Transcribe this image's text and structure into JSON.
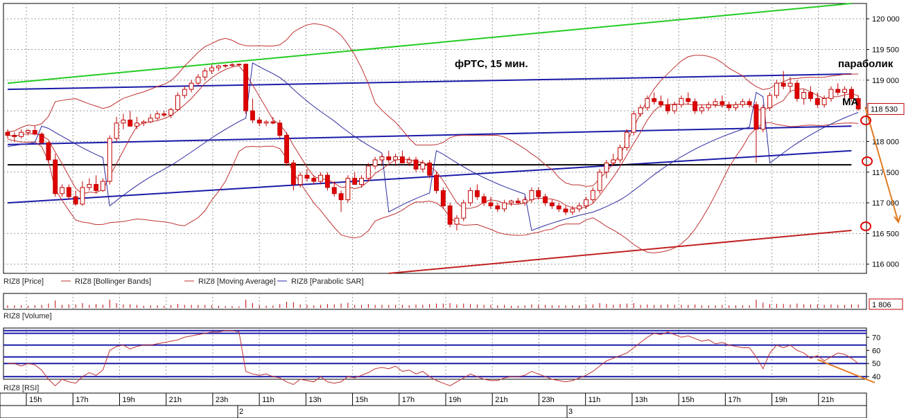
{
  "chart_data": {
    "type": "candlestick",
    "title": "фРТС, 15 мин.",
    "annotations": {
      "parabolic": "параболик",
      "ma": "МА"
    },
    "price_panel": {
      "ylim": [
        115850,
        120250
      ],
      "y_ticks": [
        "120 000",
        "119 500",
        "119 000",
        "118 500",
        "118 000",
        "117 500",
        "117 000",
        "116 500",
        "116 000"
      ],
      "y_tick_values": [
        120000,
        119500,
        119000,
        118500,
        118000,
        117500,
        117000,
        116500,
        116000
      ],
      "last_price": "118 530",
      "last_price_value": 118530,
      "legend": [
        "RIZ8 [Price]",
        "RIZ8 [Bollinger Bands]",
        "RIZ8 [Moving Average]",
        "RIZ8 [Parabolic SAR]"
      ],
      "candles": [
        [
          118150,
          118200,
          118050,
          118100
        ],
        [
          118100,
          118150,
          118000,
          118080
        ],
        [
          118080,
          118200,
          118050,
          118150
        ],
        [
          118150,
          118200,
          118100,
          118180
        ],
        [
          118180,
          118250,
          118100,
          118120
        ],
        [
          118120,
          118150,
          117950,
          117980
        ],
        [
          117980,
          118000,
          117650,
          117700
        ],
        [
          117700,
          117800,
          117100,
          117150
        ],
        [
          117150,
          117300,
          117100,
          117250
        ],
        [
          117250,
          117300,
          117050,
          117100
        ],
        [
          117100,
          117200,
          116950,
          116980
        ],
        [
          116980,
          117350,
          116950,
          117250
        ],
        [
          117250,
          117400,
          117200,
          117300
        ],
        [
          117300,
          117450,
          117150,
          117200
        ],
        [
          117200,
          117400,
          117180,
          117350
        ],
        [
          117350,
          118100,
          117300,
          118050
        ],
        [
          118050,
          118400,
          118000,
          118300
        ],
        [
          118300,
          118450,
          118200,
          118350
        ],
        [
          118350,
          118500,
          118250,
          118250
        ],
        [
          118250,
          118400,
          118200,
          118300
        ],
        [
          118300,
          118350,
          118250,
          118320
        ],
        [
          118320,
          118450,
          118300,
          118380
        ],
        [
          118380,
          118500,
          118350,
          118450
        ],
        [
          118450,
          118500,
          118400,
          118430
        ],
        [
          118430,
          118550,
          118380,
          118520
        ],
        [
          118520,
          118800,
          118500,
          118750
        ],
        [
          118750,
          118900,
          118700,
          118850
        ],
        [
          118850,
          119000,
          118800,
          118950
        ],
        [
          118950,
          119100,
          118900,
          119050
        ],
        [
          119050,
          119200,
          119000,
          119150
        ],
        [
          119150,
          119250,
          119100,
          119200
        ],
        [
          119200,
          119250,
          119150,
          119230
        ],
        [
          119230,
          119260,
          119200,
          119240
        ],
        [
          119240,
          119280,
          119220,
          119250
        ],
        [
          119250,
          119270,
          119230,
          119260
        ],
        [
          119260,
          119270,
          118450,
          118500
        ],
        [
          118500,
          118700,
          118300,
          118350
        ],
        [
          118350,
          118400,
          118250,
          118300
        ],
        [
          118300,
          118350,
          118250,
          118320
        ],
        [
          118320,
          118400,
          118280,
          118300
        ],
        [
          118300,
          118350,
          118050,
          118100
        ],
        [
          118100,
          118150,
          117600,
          117650
        ],
        [
          117650,
          117700,
          117200,
          117300
        ],
        [
          117300,
          117500,
          117250,
          117450
        ],
        [
          117450,
          117550,
          117350,
          117400
        ],
        [
          117400,
          117450,
          117300,
          117350
        ],
        [
          117350,
          117500,
          117300,
          117450
        ],
        [
          117450,
          117500,
          117200,
          117250
        ],
        [
          117250,
          117350,
          117100,
          117150
        ],
        [
          117150,
          117200,
          116850,
          117050
        ],
        [
          117050,
          117450,
          117000,
          117400
        ],
        [
          117400,
          117500,
          117300,
          117300
        ],
        [
          117300,
          117450,
          117250,
          117400
        ],
        [
          117400,
          117650,
          117350,
          117600
        ],
        [
          117600,
          117750,
          117550,
          117700
        ],
        [
          117700,
          117800,
          117600,
          117750
        ],
        [
          117750,
          117850,
          117650,
          117700
        ],
        [
          117700,
          117800,
          117600,
          117750
        ],
        [
          117750,
          117850,
          117650,
          117650
        ],
        [
          117650,
          117750,
          117600,
          117700
        ],
        [
          117700,
          117750,
          117500,
          117550
        ],
        [
          117550,
          117700,
          117500,
          117650
        ],
        [
          117650,
          117700,
          117400,
          117450
        ],
        [
          117450,
          117500,
          117150,
          117200
        ],
        [
          117200,
          117250,
          116900,
          116950
        ],
        [
          116950,
          117000,
          116600,
          116650
        ],
        [
          116650,
          116800,
          116550,
          116750
        ],
        [
          116750,
          117050,
          116700,
          117000
        ],
        [
          117000,
          117250,
          116950,
          117200
        ],
        [
          117200,
          117300,
          117050,
          117100
        ],
        [
          117100,
          117150,
          116950,
          117000
        ],
        [
          117000,
          117100,
          116900,
          116950
        ],
        [
          116950,
          117000,
          116850,
          116900
        ],
        [
          116900,
          117050,
          116850,
          117000
        ],
        [
          117000,
          117050,
          116950,
          117030
        ],
        [
          117030,
          117080,
          116980,
          117000
        ],
        [
          117000,
          117100,
          116950,
          117050
        ],
        [
          117050,
          117250,
          117000,
          117200
        ],
        [
          117200,
          117250,
          117050,
          117100
        ],
        [
          117100,
          117150,
          116950,
          117000
        ],
        [
          117000,
          117050,
          116900,
          116950
        ],
        [
          116950,
          117000,
          116850,
          116900
        ],
        [
          116900,
          116950,
          116800,
          116850
        ],
        [
          116850,
          116950,
          116800,
          116900
        ],
        [
          116900,
          117000,
          116850,
          116950
        ],
        [
          116950,
          117100,
          116900,
          117050
        ],
        [
          117050,
          117250,
          117000,
          117200
        ],
        [
          117200,
          117550,
          117150,
          117500
        ],
        [
          117500,
          117700,
          117400,
          117650
        ],
        [
          117650,
          117800,
          117600,
          117700
        ],
        [
          117700,
          117950,
          117650,
          117900
        ],
        [
          117900,
          118200,
          117850,
          118150
        ],
        [
          118150,
          118500,
          118100,
          118450
        ],
        [
          118450,
          118600,
          118400,
          118550
        ],
        [
          118550,
          118750,
          118500,
          118700
        ],
        [
          118700,
          118800,
          118600,
          118650
        ],
        [
          118650,
          118750,
          118550,
          118600
        ],
        [
          118600,
          118700,
          118450,
          118500
        ],
        [
          118500,
          118650,
          118450,
          118600
        ],
        [
          118600,
          118750,
          118550,
          118700
        ],
        [
          118700,
          118800,
          118600,
          118650
        ],
        [
          118650,
          118700,
          118450,
          118500
        ],
        [
          118500,
          118600,
          118450,
          118550
        ],
        [
          118550,
          118650,
          118500,
          118600
        ],
        [
          118600,
          118700,
          118550,
          118650
        ],
        [
          118650,
          118750,
          118550,
          118600
        ],
        [
          118600,
          118650,
          118500,
          118550
        ],
        [
          118550,
          118650,
          118500,
          118600
        ],
        [
          118600,
          118700,
          118550,
          118650
        ],
        [
          118650,
          118700,
          118550,
          118600
        ],
        [
          118600,
          118650,
          117650,
          118200
        ],
        [
          118200,
          118600,
          118150,
          118550
        ],
        [
          118550,
          118800,
          118500,
          118750
        ],
        [
          118750,
          119000,
          118700,
          118950
        ],
        [
          118950,
          119150,
          118850,
          118900
        ],
        [
          118900,
          119050,
          118800,
          118950
        ],
        [
          118950,
          119000,
          118650,
          118700
        ],
        [
          118700,
          118850,
          118600,
          118800
        ],
        [
          118800,
          118900,
          118650,
          118700
        ],
        [
          118700,
          118800,
          118550,
          118600
        ],
        [
          118600,
          118750,
          118550,
          118700
        ],
        [
          118700,
          118900,
          118650,
          118850
        ],
        [
          118850,
          118950,
          118750,
          118800
        ],
        [
          118800,
          118900,
          118700,
          118850
        ],
        [
          118850,
          118900,
          118650,
          118700
        ],
        [
          118700,
          118750,
          118500,
          118530
        ]
      ],
      "lines": {
        "green_channel": [
          [
            0,
            118950
          ],
          [
            124,
            120250
          ]
        ],
        "blue_upper": [
          [
            0,
            118850
          ],
          [
            124,
            119100
          ]
        ],
        "blue_middle": [
          [
            0,
            117950
          ],
          [
            124,
            118250
          ]
        ],
        "blue_lower": [
          [
            0,
            117000
          ],
          [
            124,
            117850
          ]
        ],
        "black_horizontal": [
          [
            0,
            117620
          ],
          [
            124,
            117620
          ]
        ],
        "red_lower": [
          [
            56,
            115850
          ],
          [
            124,
            116550
          ]
        ]
      }
    },
    "volume_panel": {
      "label": "RIZ8 [Volume]",
      "last_value": "1 806",
      "last_value_num": 1806
    },
    "rsi_panel": {
      "label": "RIZ8 [RSI]",
      "ylim": [
        38,
        77
      ],
      "y_ticks": [
        "70",
        "60",
        "50",
        "40"
      ],
      "y_tick_values": [
        70,
        60,
        50,
        40
      ],
      "levels": [
        75,
        73,
        64,
        55,
        50,
        40
      ],
      "values": [
        50,
        50,
        48,
        50,
        49,
        45,
        38,
        33,
        38,
        36,
        35,
        40,
        43,
        41,
        45,
        60,
        63,
        64,
        61,
        63,
        64,
        64,
        65,
        66,
        67,
        68,
        70,
        71,
        72,
        73,
        74,
        74,
        75,
        75,
        74,
        44,
        42,
        41,
        42,
        40,
        39,
        36,
        34,
        38,
        37,
        36,
        40,
        36,
        35,
        36,
        40,
        39,
        41,
        43,
        46,
        47,
        46,
        48,
        44,
        45,
        42,
        44,
        40,
        37,
        35,
        33,
        36,
        39,
        42,
        40,
        38,
        37,
        37,
        39,
        40,
        40,
        41,
        44,
        42,
        40,
        38,
        37,
        36,
        37,
        39,
        41,
        44,
        48,
        52,
        54,
        56,
        58,
        62,
        66,
        70,
        73,
        72,
        74,
        72,
        70,
        71,
        69,
        67,
        68,
        65,
        66,
        64,
        63,
        62,
        62,
        55,
        46,
        58,
        64,
        62,
        64,
        60,
        58,
        54,
        56,
        52,
        55,
        58,
        57,
        54,
        50
      ],
      "overlay_line": [
        [
          119,
          53
        ],
        [
          124,
          40
        ]
      ]
    },
    "time_axis": {
      "hours": [
        "15h",
        "17h",
        "19h",
        "21h",
        "23h",
        "11h",
        "13h",
        "15h",
        "17h",
        "19h",
        "21h",
        "23h",
        "11h",
        "13h",
        "15h",
        "17h",
        "19h",
        "21h"
      ],
      "dates": [
        "2",
        "3"
      ]
    }
  }
}
